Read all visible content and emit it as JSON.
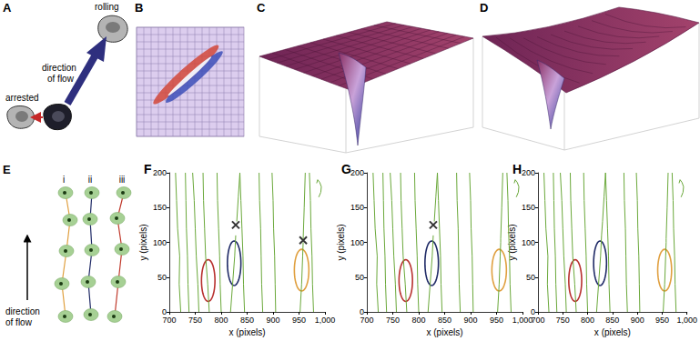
{
  "diagram": {
    "A": {
      "label": "A",
      "arrested": "arrested",
      "rolling": "rolling",
      "flow": [
        "direction",
        "of flow"
      ]
    },
    "B": {
      "label": "B"
    },
    "C": {
      "label": "C"
    },
    "D": {
      "label": "D"
    },
    "E": {
      "label": "E",
      "tracks": [
        "i",
        "ii",
        "iii"
      ],
      "flow": [
        "direction",
        "of flow"
      ]
    }
  },
  "chart_data": [
    {
      "type": "line",
      "title": "F",
      "xlabel": "x (pixels)",
      "ylabel": "y (pixels)",
      "color": "#6aa83a",
      "xlim": [
        700,
        1000
      ],
      "xticks": [
        700,
        750,
        800,
        850,
        900,
        950,
        1000
      ],
      "ylim": [
        0,
        200
      ],
      "yticks": [
        0,
        50,
        100,
        150,
        200
      ],
      "grid": false,
      "series": [
        {
          "x": [
            722,
            719,
            720,
            716,
            714,
            712
          ],
          "values": [
            0,
            40,
            80,
            120,
            160,
            200
          ]
        },
        {
          "x": [
            738,
            736,
            735,
            733,
            732,
            731
          ],
          "values": [
            0,
            40,
            80,
            120,
            160,
            200
          ]
        },
        {
          "x": [
            757,
            755,
            752,
            750,
            748,
            745
          ],
          "values": [
            0,
            40,
            80,
            120,
            160,
            200
          ]
        },
        {
          "x": [
            777,
            774,
            770,
            768,
            766,
            765
          ],
          "values": [
            0,
            40,
            80,
            120,
            160,
            200
          ]
        },
        {
          "x": [
            800,
            798,
            797,
            795,
            793,
            792
          ],
          "values": [
            0,
            40,
            80,
            120,
            160,
            200
          ]
        },
        {
          "x": [
            818,
            822,
            826,
            828,
            null,
            830,
            833,
            836
          ],
          "values": [
            0,
            40,
            80,
            110,
            null,
            130,
            165,
            200
          ]
        },
        {
          "x": [
            845,
            843,
            842,
            840,
            838,
            836
          ],
          "values": [
            0,
            40,
            80,
            120,
            160,
            200
          ]
        },
        {
          "x": [
            880,
            878,
            877,
            876,
            874,
            873
          ],
          "values": [
            0,
            40,
            80,
            120,
            160,
            200
          ]
        },
        {
          "x": [
            905,
            904,
            903,
            901,
            900,
            898
          ],
          "values": [
            0,
            40,
            80,
            120,
            160,
            200
          ]
        },
        {
          "x": [
            952,
            955,
            957,
            958,
            null,
            958,
            960,
            962
          ],
          "values": [
            0,
            40,
            80,
            100,
            null,
            105,
            150,
            200
          ]
        },
        {
          "x": [
            978,
            976,
            975,
            973,
            972,
            970
          ],
          "values": [
            0,
            40,
            80,
            120,
            160,
            200
          ]
        },
        {
          "x": [
            988,
            992,
            993,
            990,
            986,
            984
          ],
          "values": [
            165,
            172,
            180,
            186,
            190,
            185
          ]
        }
      ],
      "annotations": [
        {
          "type": "ellipse",
          "center": [
            775,
            45
          ],
          "radii": [
            13,
            30
          ],
          "color": "#b8312f"
        },
        {
          "type": "ellipse",
          "center": [
            825,
            70
          ],
          "radii": [
            13,
            32
          ],
          "color": "#1f2a66"
        },
        {
          "type": "ellipse",
          "center": [
            955,
            60
          ],
          "radii": [
            14,
            30
          ],
          "color": "#e0a040"
        },
        {
          "type": "marker",
          "marker": "x",
          "at": [
            828,
            125
          ],
          "color": "#000000"
        },
        {
          "type": "marker",
          "marker": "x",
          "at": [
            958,
            103
          ],
          "color": "#000000"
        }
      ]
    },
    {
      "type": "line",
      "title": "G",
      "xlabel": "x (pixels)",
      "ylabel": "y (pixels)",
      "color": "#6aa83a",
      "xlim": [
        700,
        1000
      ],
      "xticks": [
        700,
        750,
        800,
        850,
        900,
        950,
        1000
      ],
      "ylim": [
        0,
        200
      ],
      "yticks": [
        0,
        50,
        100,
        150,
        200
      ],
      "grid": false,
      "series": [
        {
          "x": [
            722,
            719,
            720,
            716,
            714,
            712
          ],
          "values": [
            0,
            40,
            80,
            120,
            160,
            200
          ]
        },
        {
          "x": [
            738,
            736,
            735,
            733,
            732,
            731
          ],
          "values": [
            0,
            40,
            80,
            120,
            160,
            200
          ]
        },
        {
          "x": [
            757,
            755,
            752,
            750,
            748,
            745
          ],
          "values": [
            0,
            40,
            80,
            120,
            160,
            200
          ]
        },
        {
          "x": [
            777,
            774,
            770,
            768,
            766,
            765
          ],
          "values": [
            0,
            40,
            80,
            120,
            160,
            200
          ]
        },
        {
          "x": [
            800,
            798,
            797,
            795,
            793,
            792
          ],
          "values": [
            0,
            40,
            80,
            120,
            160,
            200
          ]
        },
        {
          "x": [
            818,
            822,
            826,
            828,
            null,
            830,
            833,
            836
          ],
          "values": [
            0,
            40,
            80,
            110,
            null,
            130,
            165,
            200
          ]
        },
        {
          "x": [
            845,
            843,
            842,
            840,
            838,
            836
          ],
          "values": [
            0,
            40,
            80,
            120,
            160,
            200
          ]
        },
        {
          "x": [
            880,
            878,
            877,
            876,
            874,
            873
          ],
          "values": [
            0,
            40,
            80,
            120,
            160,
            200
          ]
        },
        {
          "x": [
            905,
            904,
            903,
            901,
            900,
            898
          ],
          "values": [
            0,
            40,
            80,
            120,
            160,
            200
          ]
        },
        {
          "x": [
            952,
            955,
            957,
            958,
            958,
            960,
            962
          ],
          "values": [
            0,
            40,
            80,
            100,
            105,
            150,
            200
          ]
        },
        {
          "x": [
            978,
            976,
            975,
            973,
            972,
            970
          ],
          "values": [
            0,
            40,
            80,
            120,
            160,
            200
          ]
        },
        {
          "x": [
            988,
            992,
            993,
            990,
            986,
            984
          ],
          "values": [
            165,
            172,
            180,
            186,
            190,
            185
          ]
        }
      ],
      "annotations": [
        {
          "type": "ellipse",
          "center": [
            775,
            45
          ],
          "radii": [
            13,
            30
          ],
          "color": "#b8312f"
        },
        {
          "type": "ellipse",
          "center": [
            825,
            70
          ],
          "radii": [
            13,
            32
          ],
          "color": "#1f2a66"
        },
        {
          "type": "ellipse",
          "center": [
            955,
            60
          ],
          "radii": [
            14,
            30
          ],
          "color": "#e0a040"
        },
        {
          "type": "marker",
          "marker": "x",
          "at": [
            828,
            125
          ],
          "color": "#000000"
        }
      ]
    },
    {
      "type": "line",
      "title": "H",
      "xlabel": "x (pixels)",
      "ylabel": "y (pixels)",
      "color": "#6aa83a",
      "xlim": [
        700,
        1000
      ],
      "xticks": [
        700,
        750,
        800,
        850,
        900,
        950,
        1000
      ],
      "ylim": [
        0,
        200
      ],
      "yticks": [
        0,
        50,
        100,
        150,
        200
      ],
      "grid": false,
      "series": [
        {
          "x": [
            722,
            719,
            720,
            716,
            714,
            712
          ],
          "values": [
            0,
            40,
            80,
            120,
            160,
            200
          ]
        },
        {
          "x": [
            738,
            736,
            735,
            733,
            732,
            731
          ],
          "values": [
            0,
            40,
            80,
            120,
            160,
            200
          ]
        },
        {
          "x": [
            757,
            755,
            752,
            750,
            748,
            745
          ],
          "values": [
            0,
            40,
            80,
            120,
            160,
            200
          ]
        },
        {
          "x": [
            777,
            774,
            770,
            768,
            766,
            765
          ],
          "values": [
            0,
            40,
            80,
            120,
            160,
            200
          ]
        },
        {
          "x": [
            800,
            798,
            797,
            795,
            793,
            792
          ],
          "values": [
            0,
            40,
            80,
            120,
            160,
            200
          ]
        },
        {
          "x": [
            818,
            822,
            826,
            828,
            830,
            833,
            836
          ],
          "values": [
            0,
            40,
            80,
            110,
            130,
            165,
            200
          ]
        },
        {
          "x": [
            845,
            843,
            842,
            840,
            838,
            836
          ],
          "values": [
            0,
            40,
            80,
            120,
            160,
            200
          ]
        },
        {
          "x": [
            880,
            878,
            877,
            876,
            874,
            873
          ],
          "values": [
            0,
            40,
            80,
            120,
            160,
            200
          ]
        },
        {
          "x": [
            905,
            904,
            903,
            901,
            900,
            898
          ],
          "values": [
            0,
            40,
            80,
            120,
            160,
            200
          ]
        },
        {
          "x": [
            952,
            955,
            957,
            958,
            958,
            960,
            962
          ],
          "values": [
            0,
            40,
            80,
            100,
            105,
            150,
            200
          ]
        },
        {
          "x": [
            978,
            976,
            975,
            973,
            972,
            970
          ],
          "values": [
            0,
            40,
            80,
            120,
            160,
            200
          ]
        },
        {
          "x": [
            988,
            992,
            993,
            990,
            986,
            984
          ],
          "values": [
            165,
            172,
            180,
            186,
            190,
            185
          ]
        }
      ],
      "annotations": [
        {
          "type": "ellipse",
          "center": [
            775,
            45
          ],
          "radii": [
            13,
            30
          ],
          "color": "#b8312f"
        },
        {
          "type": "ellipse",
          "center": [
            825,
            70
          ],
          "radii": [
            13,
            32
          ],
          "color": "#1f2a66"
        },
        {
          "type": "ellipse",
          "center": [
            955,
            60
          ],
          "radii": [
            14,
            30
          ],
          "color": "#e0a040"
        }
      ]
    }
  ]
}
